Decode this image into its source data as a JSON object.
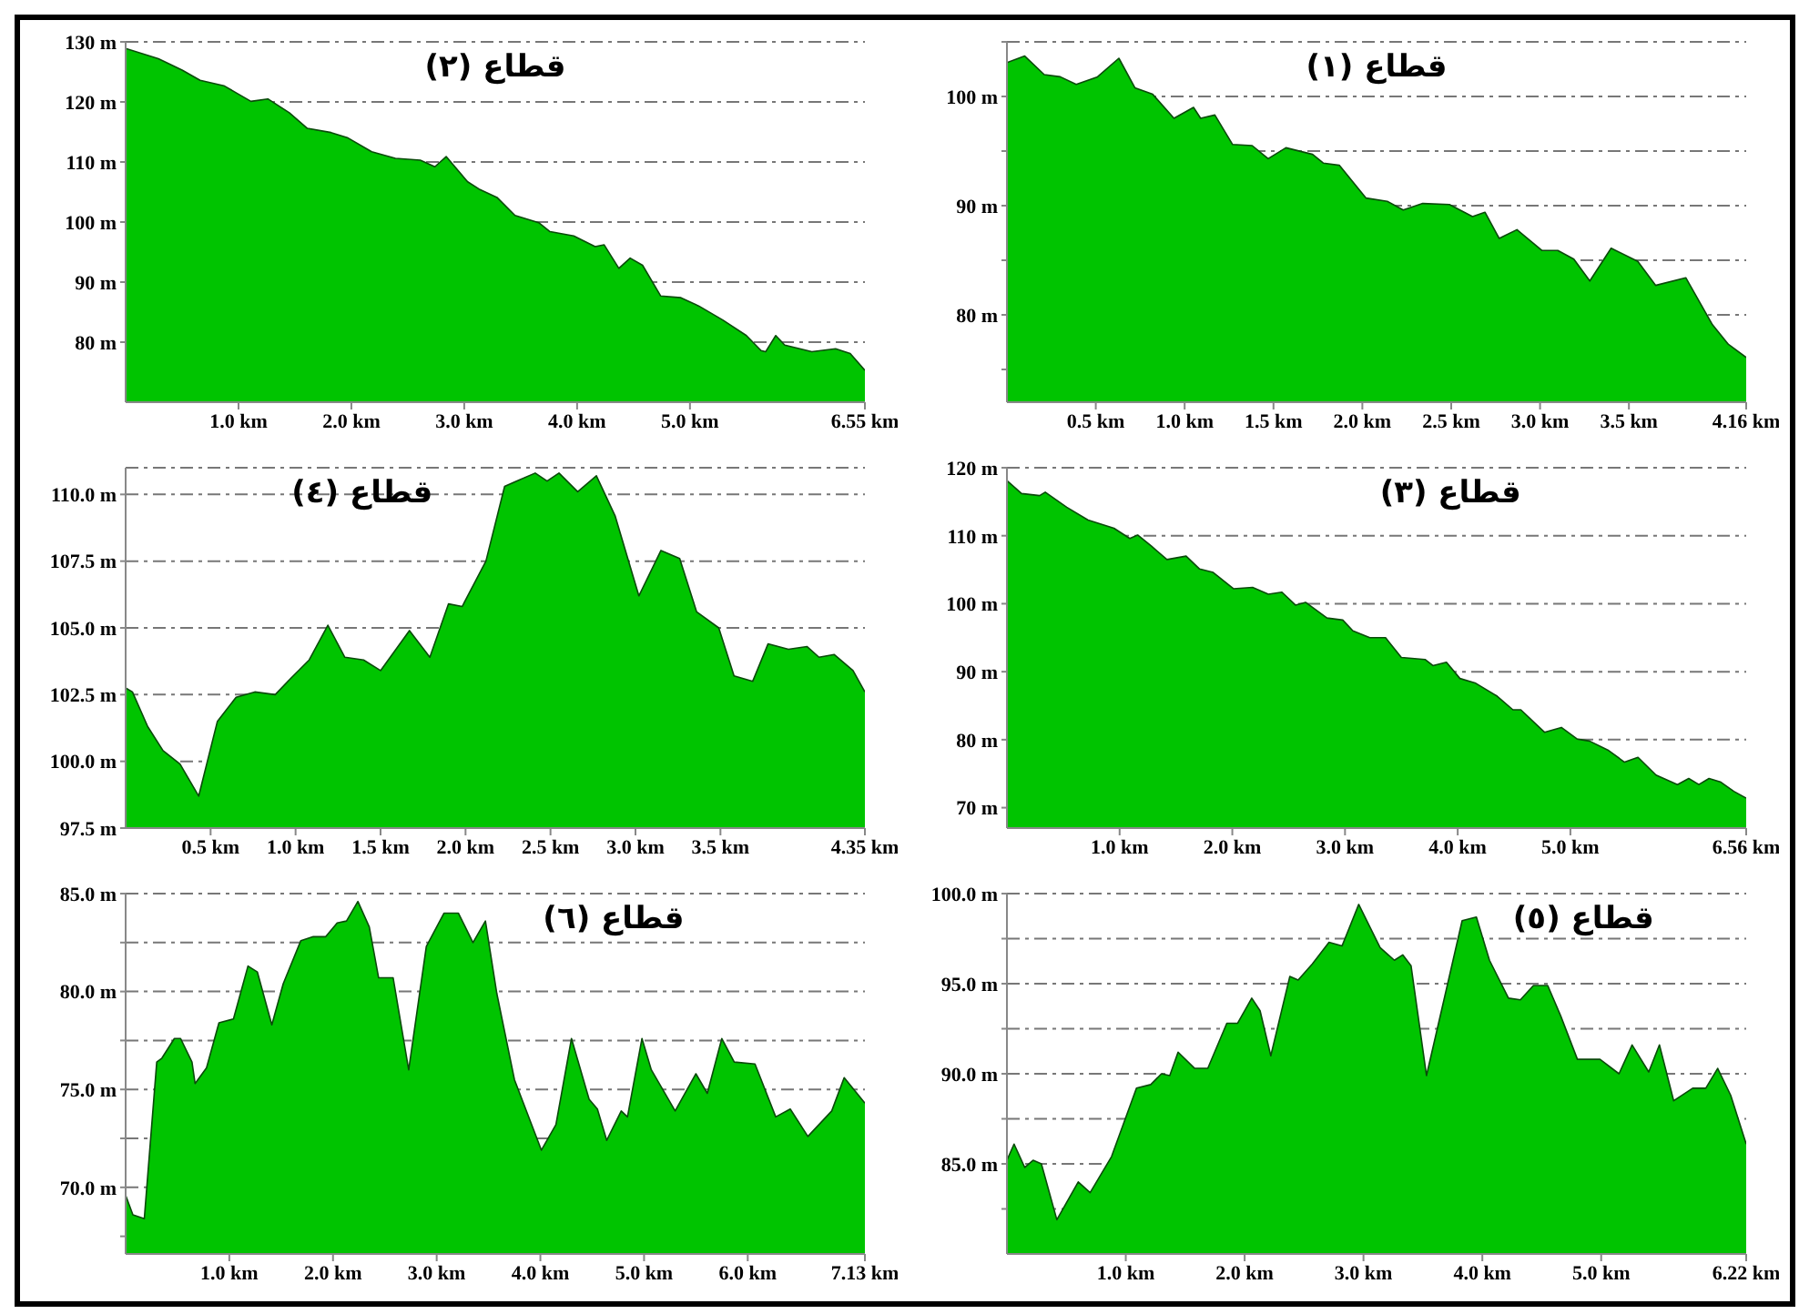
{
  "chart_data": [
    {
      "type": "area",
      "title": "قطاع (٢)",
      "color": "#00c400",
      "grid": "y",
      "marker": "none",
      "xlim": [
        0,
        6.55
      ],
      "ylim": [
        70,
        130
      ],
      "xticks": [
        {
          "value": 1,
          "label": "1.0 km"
        },
        {
          "value": 2,
          "label": "2.0 km"
        },
        {
          "value": 3,
          "label": "3.0 km"
        },
        {
          "value": 4,
          "label": "4.0 km"
        },
        {
          "value": 5,
          "label": "5.0 km"
        },
        {
          "value": 6.55,
          "label": "6.55 km"
        }
      ],
      "yticks": [
        {
          "value": 80,
          "label": "80 m"
        },
        {
          "value": 90,
          "label": "90 m"
        },
        {
          "value": 100,
          "label": "100 m"
        },
        {
          "value": 110,
          "label": "110 m"
        },
        {
          "value": 120,
          "label": "120 m"
        },
        {
          "value": 130,
          "label": "130 m"
        }
      ],
      "x": [
        0,
        0.29,
        0.5,
        0.66,
        0.87,
        1.11,
        1.26,
        1.45,
        1.61,
        1.82,
        1.97,
        2.18,
        2.39,
        2.61,
        2.74,
        2.84,
        3.03,
        3.13,
        3.29,
        3.45,
        3.66,
        3.76,
        3.97,
        4.16,
        4.24,
        4.37,
        4.47,
        4.58,
        4.74,
        4.92,
        5.08,
        5.29,
        5.5,
        5.63,
        5.67,
        5.76,
        5.84,
        6.08,
        6.29,
        6.42,
        6.55
      ],
      "values": [
        128.9,
        127.2,
        125.3,
        123.6,
        122.7,
        120.1,
        120.5,
        118.2,
        115.6,
        114.9,
        114,
        111.7,
        110.6,
        110.3,
        109.2,
        110.9,
        106.7,
        105.5,
        104.1,
        101.1,
        99.9,
        98.4,
        97.7,
        95.9,
        96.2,
        92.3,
        94,
        92.8,
        87.7,
        87.4,
        86,
        83.7,
        81.1,
        78.6,
        78.4,
        81.1,
        79.5,
        78.4,
        78.9,
        78.1,
        75.3
      ]
    },
    {
      "type": "area",
      "title": "قطاع (١)",
      "color": "#00c400",
      "grid": "y",
      "marker": "none",
      "xlim": [
        0,
        4.16
      ],
      "ylim": [
        72,
        105
      ],
      "xticks": [
        {
          "value": 0.5,
          "label": "0.5 km"
        },
        {
          "value": 1,
          "label": "1.0 km"
        },
        {
          "value": 1.5,
          "label": "1.5 km"
        },
        {
          "value": 2,
          "label": "2.0 km"
        },
        {
          "value": 2.5,
          "label": "2.5 km"
        },
        {
          "value": 3,
          "label": "3.0 km"
        },
        {
          "value": 3.5,
          "label": "3.5 km"
        },
        {
          "value": 4.16,
          "label": "4.16 km"
        }
      ],
      "yticks": [
        {
          "value": 75,
          "label": null
        },
        {
          "value": 80,
          "label": "80 m"
        },
        {
          "value": 85,
          "label": null
        },
        {
          "value": 90,
          "label": "90 m"
        },
        {
          "value": 95,
          "label": null
        },
        {
          "value": 100,
          "label": "100 m"
        },
        {
          "value": 105,
          "label": null
        }
      ],
      "x": [
        0,
        0.1,
        0.21,
        0.3,
        0.39,
        0.51,
        0.63,
        0.72,
        0.82,
        0.94,
        1.05,
        1.09,
        1.17,
        1.27,
        1.38,
        1.47,
        1.57,
        1.72,
        1.78,
        1.87,
        2.02,
        2.14,
        2.23,
        2.34,
        2.49,
        2.62,
        2.69,
        2.77,
        2.87,
        3.01,
        3.1,
        3.19,
        3.28,
        3.4,
        3.55,
        3.65,
        3.82,
        3.97,
        4.06,
        4.16
      ],
      "values": [
        103.1,
        103.7,
        102,
        101.8,
        101.1,
        101.8,
        103.5,
        100.8,
        100.2,
        98,
        99,
        98,
        98.3,
        95.6,
        95.5,
        94.3,
        95.3,
        94.7,
        93.9,
        93.7,
        90.7,
        90.4,
        89.6,
        90.2,
        90.1,
        89,
        89.4,
        87,
        87.8,
        85.9,
        85.9,
        85.1,
        83.1,
        86.1,
        84.9,
        82.7,
        83.4,
        79.1,
        77.3,
        76.1
      ]
    },
    {
      "type": "area",
      "title": "قطاع (٤)",
      "color": "#00c400",
      "grid": "y",
      "marker": "none",
      "xlim": [
        0,
        4.35
      ],
      "ylim": [
        97.5,
        111
      ],
      "xticks": [
        {
          "value": 0.5,
          "label": "0.5 km"
        },
        {
          "value": 1,
          "label": "1.0 km"
        },
        {
          "value": 1.5,
          "label": "1.5 km"
        },
        {
          "value": 2,
          "label": "2.0 km"
        },
        {
          "value": 2.5,
          "label": "2.5 km"
        },
        {
          "value": 3,
          "label": "3.0 km"
        },
        {
          "value": 3.5,
          "label": "3.5 km"
        },
        {
          "value": 4.35,
          "label": "4.35 km"
        }
      ],
      "yticks": [
        {
          "value": 97.5,
          "label": "97.5 m"
        },
        {
          "value": 100,
          "label": "100.0 m"
        },
        {
          "value": 102.5,
          "label": "102.5 m"
        },
        {
          "value": 105,
          "label": "105.0 m"
        },
        {
          "value": 107.5,
          "label": "107.5 m"
        },
        {
          "value": 110,
          "label": "110.0 m"
        }
      ],
      "x": [
        0,
        0.04,
        0.13,
        0.22,
        0.32,
        0.43,
        0.54,
        0.65,
        0.76,
        0.88,
        0.97,
        1.08,
        1.19,
        1.29,
        1.4,
        1.5,
        1.67,
        1.79,
        1.9,
        1.98,
        2.12,
        2.23,
        2.3,
        2.41,
        2.48,
        2.55,
        2.66,
        2.77,
        2.88,
        3.02,
        3.15,
        3.26,
        3.36,
        3.49,
        3.58,
        3.69,
        3.78,
        3.9,
        4.01,
        4.08,
        4.17,
        4.28,
        4.35
      ],
      "values": [
        102.75,
        102.6,
        101.3,
        100.4,
        99.9,
        98.7,
        101.5,
        102.4,
        102.6,
        102.5,
        103.1,
        103.8,
        105.1,
        103.9,
        103.8,
        103.4,
        104.9,
        103.9,
        105.9,
        105.8,
        107.5,
        110.3,
        110.5,
        110.8,
        110.5,
        110.8,
        110.1,
        110.7,
        109.2,
        106.2,
        107.9,
        107.6,
        105.6,
        105,
        103.2,
        103,
        104.4,
        104.2,
        104.3,
        103.9,
        104,
        103.4,
        102.6
      ]
    },
    {
      "type": "area",
      "title": "قطاع (٣)",
      "color": "#00c400",
      "grid": "y",
      "marker": "none",
      "xlim": [
        0,
        6.56
      ],
      "ylim": [
        67,
        120
      ],
      "xticks": [
        {
          "value": 1,
          "label": "1.0 km"
        },
        {
          "value": 2,
          "label": "2.0 km"
        },
        {
          "value": 3,
          "label": "3.0 km"
        },
        {
          "value": 4,
          "label": "4.0 km"
        },
        {
          "value": 5,
          "label": "5.0 km"
        },
        {
          "value": 6.56,
          "label": "6.56 km"
        }
      ],
      "yticks": [
        {
          "value": 70,
          "label": "70 m"
        },
        {
          "value": 80,
          "label": "80 m"
        },
        {
          "value": 90,
          "label": "90 m"
        },
        {
          "value": 100,
          "label": "100 m"
        },
        {
          "value": 110,
          "label": "110 m"
        },
        {
          "value": 120,
          "label": "120 m"
        }
      ],
      "x": [
        0,
        0.13,
        0.29,
        0.34,
        0.53,
        0.72,
        0.95,
        1.09,
        1.16,
        1.28,
        1.42,
        1.59,
        1.71,
        1.83,
        2.01,
        2.18,
        2.32,
        2.44,
        2.56,
        2.65,
        2.84,
        2.98,
        3.07,
        3.22,
        3.36,
        3.5,
        3.71,
        3.78,
        3.9,
        4.02,
        4.16,
        4.35,
        4.49,
        4.56,
        4.77,
        4.92,
        5.06,
        5.17,
        5.34,
        5.48,
        5.6,
        5.76,
        5.95,
        6.05,
        6.14,
        6.23,
        6.33,
        6.45,
        6.56
      ],
      "values": [
        118.1,
        116.2,
        115.9,
        116.4,
        114.2,
        112.3,
        111.1,
        109.6,
        110.1,
        108.5,
        106.5,
        107,
        105.1,
        104.6,
        102.2,
        102.4,
        101.4,
        101.7,
        99.8,
        100.2,
        97.9,
        97.6,
        96,
        95,
        95,
        92.1,
        91.8,
        90.9,
        91.4,
        89,
        88.3,
        86.4,
        84.4,
        84.4,
        81.1,
        81.8,
        80.1,
        79.8,
        78.4,
        76.7,
        77.4,
        74.8,
        73.4,
        74.3,
        73.4,
        74.3,
        73.8,
        72.4,
        71.4
      ]
    },
    {
      "type": "area",
      "title": "قطاع (٦)",
      "color": "#00c400",
      "grid": "y",
      "marker": "none",
      "xlim": [
        0,
        7.13
      ],
      "ylim": [
        66.6,
        85
      ],
      "xticks": [
        {
          "value": 1,
          "label": "1.0 km"
        },
        {
          "value": 2,
          "label": "2.0 km"
        },
        {
          "value": 3,
          "label": "3.0 km"
        },
        {
          "value": 4,
          "label": "4.0 km"
        },
        {
          "value": 5,
          "label": "5.0 km"
        },
        {
          "value": 6,
          "label": "6.0 km"
        },
        {
          "value": 7.13,
          "label": "7.13 km"
        }
      ],
      "yticks": [
        {
          "value": 67.5,
          "label": null
        },
        {
          "value": 70,
          "label": "70.0 m"
        },
        {
          "value": 72.5,
          "label": null
        },
        {
          "value": 75,
          "label": "75.0 m"
        },
        {
          "value": 77.5,
          "label": null
        },
        {
          "value": 80,
          "label": "80.0 m"
        },
        {
          "value": 82.5,
          "label": null
        },
        {
          "value": 85,
          "label": "85.0 m"
        }
      ],
      "x": [
        0,
        0.07,
        0.18,
        0.3,
        0.35,
        0.47,
        0.53,
        0.64,
        0.67,
        0.78,
        0.9,
        1.04,
        1.18,
        1.27,
        1.41,
        1.52,
        1.69,
        1.81,
        1.93,
        2.04,
        2.13,
        2.24,
        2.35,
        2.44,
        2.58,
        2.73,
        2.9,
        3.07,
        3.21,
        3.35,
        3.47,
        3.58,
        3.75,
        4.01,
        4.15,
        4.3,
        4.47,
        4.55,
        4.64,
        4.78,
        4.84,
        4.98,
        5.07,
        5.3,
        5.5,
        5.61,
        5.75,
        5.87,
        6.07,
        6.27,
        6.41,
        6.58,
        6.81,
        6.93,
        7.13
      ],
      "values": [
        69.6,
        68.6,
        68.4,
        76.4,
        76.6,
        77.6,
        77.6,
        76.4,
        75.3,
        76.1,
        78.4,
        78.6,
        81.3,
        81,
        78.3,
        80.4,
        82.6,
        82.8,
        82.8,
        83.5,
        83.6,
        84.6,
        83.3,
        80.7,
        80.7,
        76,
        82.3,
        84,
        84,
        82.5,
        83.6,
        79.9,
        75.5,
        71.9,
        73.2,
        77.6,
        74.5,
        74,
        72.4,
        73.9,
        73.6,
        77.6,
        76,
        73.9,
        75.8,
        74.8,
        77.6,
        76.4,
        76.3,
        73.6,
        74,
        72.6,
        73.9,
        75.6,
        74.3
      ]
    },
    {
      "type": "area",
      "title": "قطاع (٥)",
      "color": "#00c400",
      "grid": "y",
      "marker": "none",
      "xlim": [
        0,
        6.22
      ],
      "ylim": [
        80,
        100
      ],
      "xticks": [
        {
          "value": 1,
          "label": "1.0 km"
        },
        {
          "value": 2,
          "label": "2.0 km"
        },
        {
          "value": 3,
          "label": "3.0 km"
        },
        {
          "value": 4,
          "label": "4.0 km"
        },
        {
          "value": 5,
          "label": "5.0 km"
        },
        {
          "value": 6.22,
          "label": "6.22 km"
        }
      ],
      "yticks": [
        {
          "value": 82.5,
          "label": null
        },
        {
          "value": 85,
          "label": "85.0 m"
        },
        {
          "value": 87.5,
          "label": null
        },
        {
          "value": 90,
          "label": "90.0 m"
        },
        {
          "value": 92.5,
          "label": null
        },
        {
          "value": 95,
          "label": "95.0 m"
        },
        {
          "value": 97.5,
          "label": null
        },
        {
          "value": 100,
          "label": "100.0 m"
        }
      ],
      "x": [
        0,
        0.06,
        0.15,
        0.22,
        0.29,
        0.42,
        0.6,
        0.7,
        0.88,
        1.09,
        1.21,
        1.3,
        1.37,
        1.44,
        1.58,
        1.69,
        1.85,
        1.94,
        2.06,
        2.13,
        2.22,
        2.38,
        2.45,
        2.57,
        2.71,
        2.82,
        2.96,
        3.14,
        3.26,
        3.33,
        3.4,
        3.53,
        3.67,
        3.83,
        3.95,
        4.06,
        4.22,
        4.32,
        4.43,
        4.55,
        4.66,
        4.8,
        4.99,
        5.15,
        5.26,
        5.4,
        5.49,
        5.61,
        5.77,
        5.88,
        5.98,
        6.09,
        6.22
      ],
      "values": [
        85.2,
        86.1,
        84.8,
        85.2,
        85,
        81.9,
        84,
        83.4,
        85.4,
        89.2,
        89.4,
        90,
        89.9,
        91.2,
        90.3,
        90.3,
        92.8,
        92.8,
        94.2,
        93.5,
        91,
        95.4,
        95.2,
        96.1,
        97.3,
        97.1,
        99.4,
        97,
        96.3,
        96.6,
        96,
        89.9,
        93.9,
        98.5,
        98.7,
        96.3,
        94.2,
        94.1,
        94.9,
        94.9,
        93.2,
        90.8,
        90.8,
        90,
        91.6,
        90.1,
        91.6,
        88.5,
        89.2,
        89.2,
        90.3,
        88.8,
        86.1
      ]
    }
  ]
}
